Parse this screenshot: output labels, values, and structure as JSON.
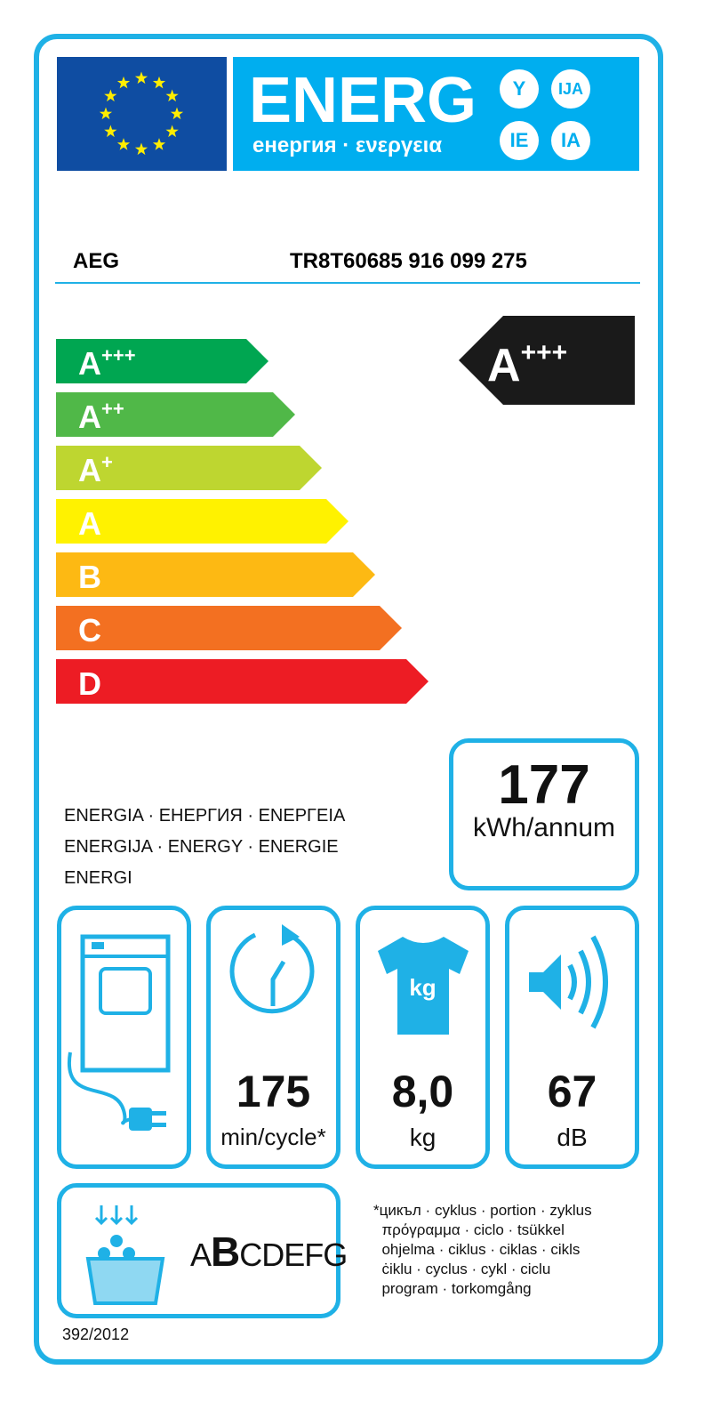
{
  "header": {
    "title": "ENERG",
    "subtitle": "енергия · ενεργεια",
    "suffixes": [
      "Y",
      "IJA",
      "IE",
      "IA"
    ]
  },
  "product": {
    "brand": "AEG",
    "model": "TR8T60685  916 099 275"
  },
  "scale": {
    "classes": [
      {
        "label": "A",
        "sup": "+++",
        "color": "#00a651"
      },
      {
        "label": "A",
        "sup": "++",
        "color": "#50b848"
      },
      {
        "label": "A",
        "sup": "+",
        "color": "#bed630"
      },
      {
        "label": "A",
        "sup": "",
        "color": "#fff200"
      },
      {
        "label": "B",
        "sup": "",
        "color": "#fdb913"
      },
      {
        "label": "C",
        "sup": "",
        "color": "#f37021"
      },
      {
        "label": "D",
        "sup": "",
        "color": "#ed1c24"
      }
    ],
    "rating": {
      "label": "A",
      "sup": "+++"
    }
  },
  "energy": {
    "value": "177",
    "unit": "kWh/annum",
    "label_lines": [
      "ENERGIA · ЕНЕРГИЯ · ΕΝΕΡΓΕΙΑ",
      "ENERGIJA · ENERGY · ENERGIE",
      "ENERGI"
    ]
  },
  "specs": [
    {
      "icon": "dryer-condenser-icon"
    },
    {
      "icon": "clock-cycle-icon",
      "value": "175",
      "unit": "min/cycle*"
    },
    {
      "icon": "tshirt-kg-icon",
      "icon_text": "kg",
      "value": "8,0",
      "unit": "kg"
    },
    {
      "icon": "speaker-noise-icon",
      "value": "67",
      "unit": "dB"
    }
  ],
  "condensation": {
    "icon": "water-drops-icon",
    "scale_first": "A",
    "scale_current": "B",
    "scale_rest": "CDEFG"
  },
  "footnote": "*цикъл · cyklus · portion · zyklus\n  πρόγραμμα · ciclo · tsükkel\n  ohjelma · ciklus · ciklas · cikls\n  ċiklu · cyclus · cykl · ciclu\n  program · torkomgång",
  "regulation": "392/2012",
  "colors": {
    "frame": "#1fb1e6",
    "header": "#00aeef",
    "eu": "#0f4da2",
    "rating": "#1a1a1a"
  }
}
